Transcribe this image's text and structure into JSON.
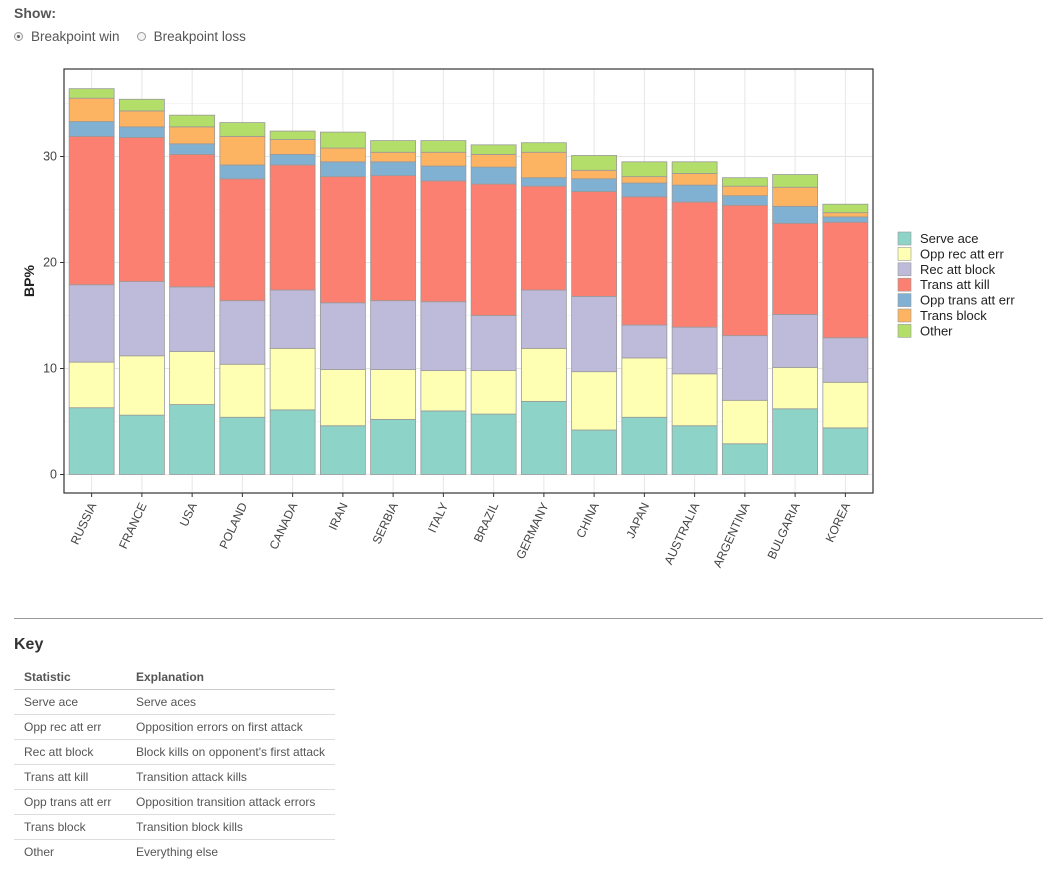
{
  "controls": {
    "show_label": "Show:",
    "options": [
      {
        "label": "Breakpoint win",
        "checked": true
      },
      {
        "label": "Breakpoint loss",
        "checked": false
      }
    ]
  },
  "key": {
    "title": "Key",
    "headers": [
      "Statistic",
      "Explanation"
    ],
    "rows": [
      [
        "Serve ace",
        "Serve aces"
      ],
      [
        "Opp rec att err",
        "Opposition errors on first attack"
      ],
      [
        "Rec att block",
        "Block kills on opponent's first attack"
      ],
      [
        "Trans att kill",
        "Transition attack kills"
      ],
      [
        "Opp trans att err",
        "Opposition transition attack errors"
      ],
      [
        "Trans block",
        "Transition block kills"
      ],
      [
        "Other",
        "Everything else"
      ]
    ]
  },
  "chart_data": {
    "type": "bar",
    "stacked": true,
    "title": "",
    "xlabel": "",
    "ylabel": "BP%",
    "ylim": [
      0,
      36.5
    ],
    "yticks": [
      0,
      10,
      20,
      30
    ],
    "grid": true,
    "legend_position": "right",
    "categories": [
      "RUSSIA",
      "FRANCE",
      "USA",
      "POLAND",
      "CANADA",
      "IRAN",
      "SERBIA",
      "ITALY",
      "BRAZIL",
      "GERMANY",
      "CHINA",
      "JAPAN",
      "AUSTRALIA",
      "ARGENTINA",
      "BULGARIA",
      "KOREA"
    ],
    "series": [
      {
        "name": "Serve ace",
        "color": "#8dd3c7",
        "values": [
          6.3,
          5.6,
          6.6,
          5.4,
          6.1,
          4.6,
          5.2,
          6.0,
          5.7,
          6.9,
          4.2,
          5.4,
          4.6,
          2.9,
          6.2,
          4.4
        ]
      },
      {
        "name": "Opp rec att err",
        "color": "#ffffb3",
        "values": [
          4.3,
          5.6,
          5.0,
          5.0,
          5.8,
          5.3,
          4.7,
          3.8,
          4.1,
          5.0,
          5.5,
          5.6,
          4.9,
          4.1,
          3.9,
          4.3
        ]
      },
      {
        "name": "Rec att block",
        "color": "#bebada",
        "values": [
          7.3,
          7.0,
          6.1,
          6.0,
          5.5,
          6.3,
          6.5,
          6.5,
          5.2,
          5.5,
          7.1,
          3.1,
          4.4,
          6.1,
          5.0,
          4.2
        ]
      },
      {
        "name": "Trans att kill",
        "color": "#fb8072",
        "values": [
          14.0,
          13.6,
          12.5,
          11.5,
          11.8,
          11.9,
          11.8,
          11.4,
          12.4,
          9.8,
          9.9,
          12.1,
          11.8,
          12.3,
          8.6,
          10.9
        ]
      },
      {
        "name": "Opp trans att err",
        "color": "#80b1d3",
        "values": [
          1.4,
          1.0,
          1.0,
          1.3,
          1.0,
          1.4,
          1.3,
          1.4,
          1.6,
          0.8,
          1.2,
          1.3,
          1.6,
          0.9,
          1.6,
          0.5
        ]
      },
      {
        "name": "Trans block",
        "color": "#fdb462",
        "values": [
          2.2,
          1.5,
          1.6,
          2.7,
          1.4,
          1.3,
          0.9,
          1.3,
          1.2,
          2.4,
          0.8,
          0.6,
          1.1,
          0.9,
          1.8,
          0.4
        ]
      },
      {
        "name": "Other",
        "color": "#b3de69",
        "values": [
          0.9,
          1.1,
          1.1,
          1.3,
          0.8,
          1.5,
          1.1,
          1.1,
          0.9,
          0.9,
          1.4,
          1.4,
          1.1,
          0.8,
          1.2,
          0.8
        ]
      }
    ]
  }
}
